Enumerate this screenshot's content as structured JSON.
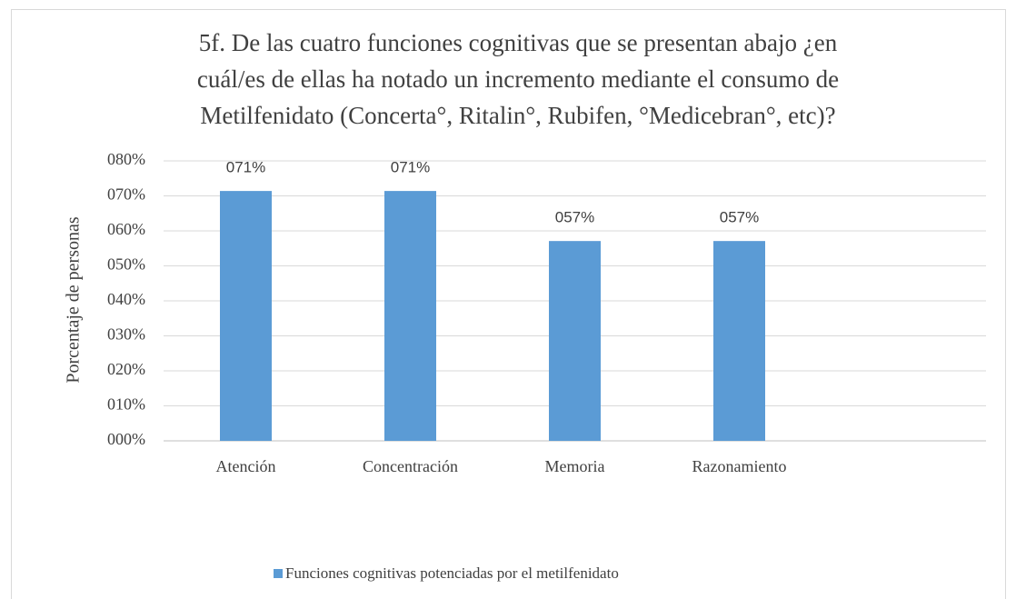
{
  "chart_data": {
    "type": "bar",
    "title": [
      "5f. De las cuatro funciones cognitivas que se presentan abajo ¿en",
      "cuál/es de ellas ha notado un incremento mediante el consumo de",
      "Metilfenidato (Concerta°, Ritalin°, Rubifen, °Medicebran°, etc)?"
    ],
    "y_label": "Porcentaje de personas",
    "categories": [
      "Atención",
      "Concentración",
      "Memoria",
      "Razonamiento",
      null
    ],
    "series": [
      {
        "name": "Funciones cognitivas potenciadas por el metilfenidato",
        "color": "#5b9bd5",
        "values": [
          71.4,
          71.4,
          57.1,
          57.1,
          null
        ],
        "value_labels": [
          "071%",
          "071%",
          "057%",
          "057%",
          null
        ]
      }
    ],
    "ylim": [
      0,
      80
    ],
    "yticks": [
      {
        "value": 0,
        "label": "000%"
      },
      {
        "value": 10,
        "label": "010%"
      },
      {
        "value": 20,
        "label": "020%"
      },
      {
        "value": 30,
        "label": "030%"
      },
      {
        "value": 40,
        "label": "040%"
      },
      {
        "value": 50,
        "label": "050%"
      },
      {
        "value": 60,
        "label": "060%"
      },
      {
        "value": 70,
        "label": "070%"
      },
      {
        "value": 80,
        "label": "080%"
      }
    ],
    "grid": true,
    "legend": "bottom"
  }
}
